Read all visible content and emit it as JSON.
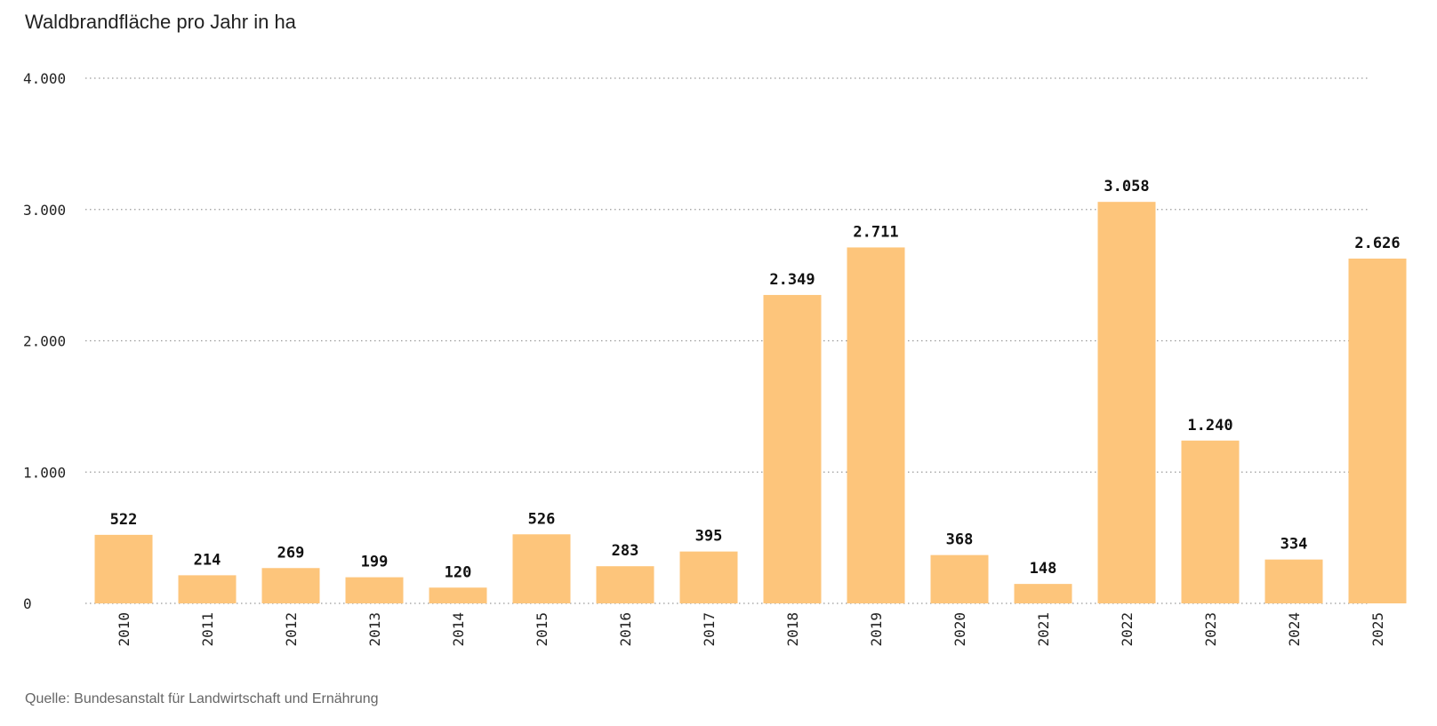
{
  "chart_data": {
    "type": "bar",
    "title": "Waldbrandfläche pro Jahr in ha",
    "xlabel": "",
    "ylabel": "",
    "categories": [
      "2010",
      "2011",
      "2012",
      "2013",
      "2014",
      "2015",
      "2016",
      "2017",
      "2018",
      "2019",
      "2020",
      "2021",
      "2022",
      "2023",
      "2024",
      "2025"
    ],
    "values": [
      522,
      214,
      269,
      199,
      120,
      526,
      283,
      395,
      2349,
      2711,
      368,
      148,
      3058,
      1240,
      334,
      2626
    ],
    "value_labels": [
      "522",
      "214",
      "269",
      "199",
      "120",
      "526",
      "283",
      "395",
      "2.349",
      "2.711",
      "368",
      "148",
      "3.058",
      "1.240",
      "334",
      "2.626"
    ],
    "ylim": [
      0,
      4000
    ],
    "yticks": [
      0,
      1000,
      2000,
      3000,
      4000
    ],
    "ytick_labels": [
      "0",
      "1.000",
      "2.000",
      "3.000",
      "4.000"
    ],
    "grid": true,
    "bar_color": "#fdc57b",
    "source": "Quelle: Bundesanstalt für Landwirtschaft und Ernährung"
  }
}
